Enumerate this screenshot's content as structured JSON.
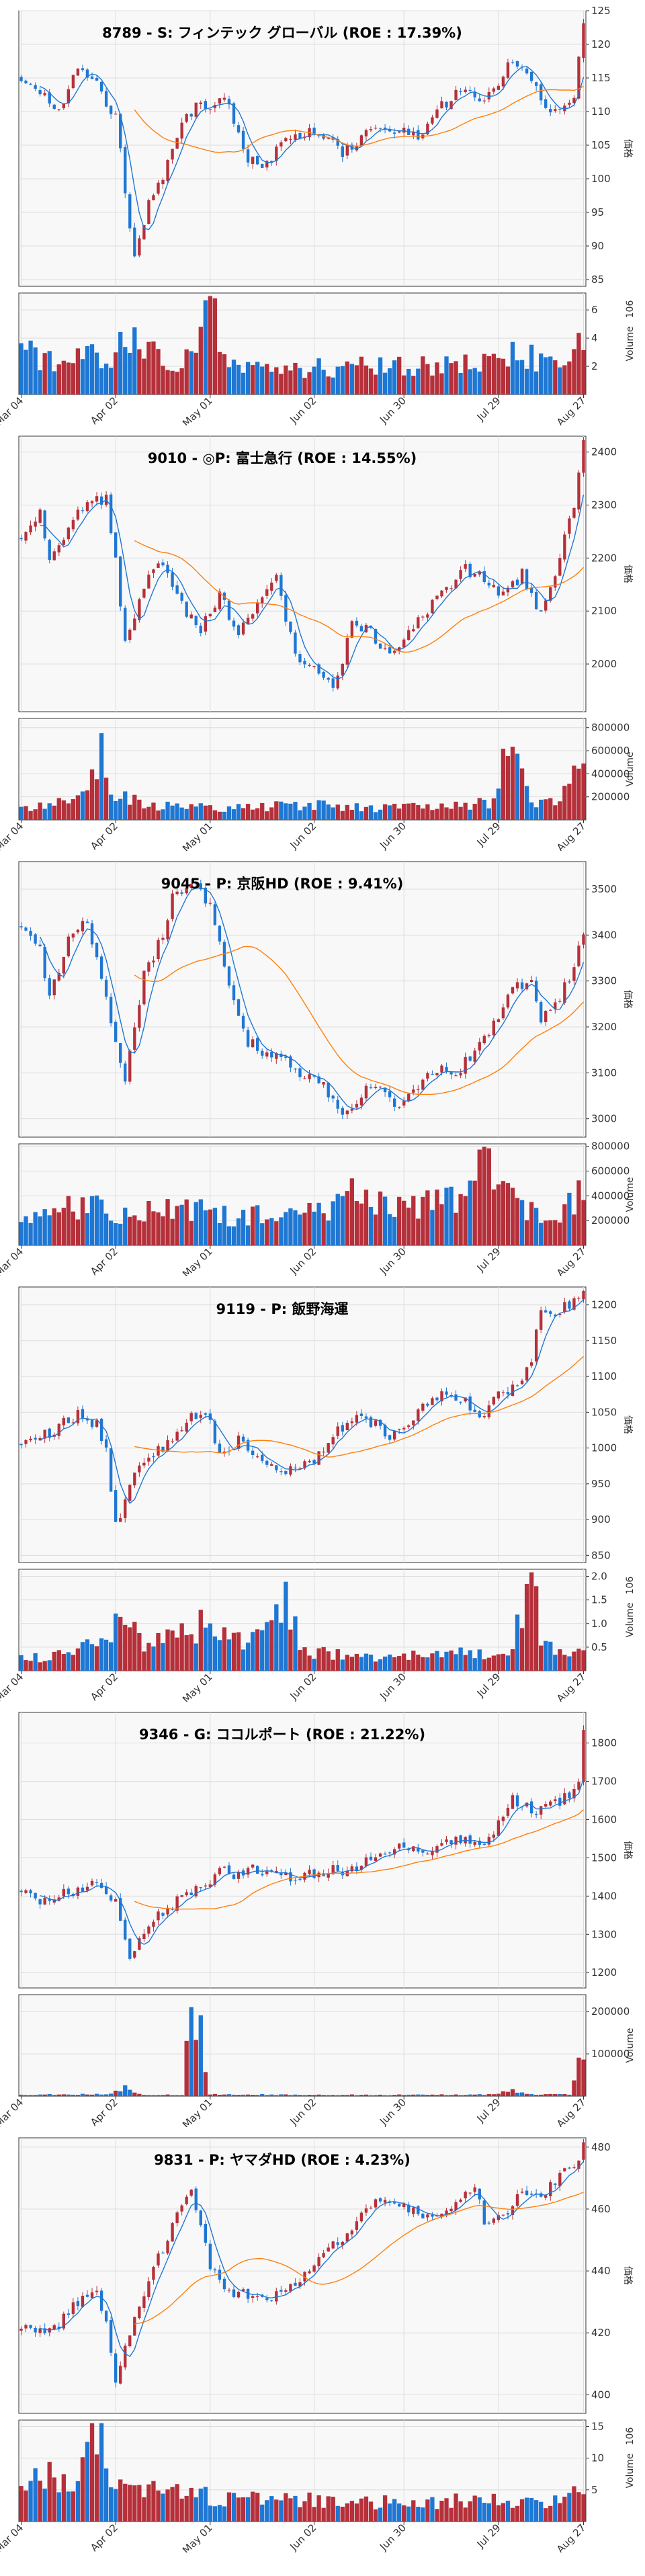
{
  "theme": {
    "up_color": "#b5303a",
    "down_color": "#1f77d4",
    "ma_short_color": "#1f77d4",
    "ma_long_color": "#ff7f0e",
    "plot_bg": "#f8f8f8",
    "grid_color": "#dcdcdc"
  },
  "x_ticks": [
    "Mar 04",
    "Apr 02",
    "May 01",
    "Jun 02",
    "Jun 30",
    "Jul 29",
    "Aug 27"
  ],
  "price_axis_label": "価格",
  "chart_data": [
    {
      "type": "candlestick",
      "title": "8789 - S: フィンテック グローバル (ROE : 17.39%)",
      "ylabel": "価格",
      "volume_label": "Volume",
      "volume_exponent": "6",
      "grid": true,
      "y_ticks": [
        85,
        90,
        95,
        100,
        105,
        110,
        115,
        120,
        125
      ],
      "volume_ticks": [
        "2",
        "4",
        "6"
      ],
      "volume_tick_values": [
        2000000,
        4000000,
        6000000
      ],
      "ylim": [
        84,
        125
      ],
      "vlim": [
        0,
        7200000
      ],
      "keypoints": [
        [
          0,
          115
        ],
        [
          4,
          113
        ],
        [
          8,
          110
        ],
        [
          12,
          117
        ],
        [
          16,
          114
        ],
        [
          20,
          109
        ],
        [
          24,
          88
        ],
        [
          27,
          96
        ],
        [
          30,
          100
        ],
        [
          34,
          108
        ],
        [
          38,
          112
        ],
        [
          40,
          110
        ],
        [
          43,
          112
        ],
        [
          46,
          107
        ],
        [
          48,
          103
        ],
        [
          52,
          102
        ],
        [
          56,
          106
        ],
        [
          60,
          107
        ],
        [
          64,
          106
        ],
        [
          68,
          104
        ],
        [
          72,
          106
        ],
        [
          76,
          108
        ],
        [
          80,
          107
        ],
        [
          84,
          106
        ],
        [
          88,
          110
        ],
        [
          92,
          113
        ],
        [
          96,
          112
        ],
        [
          100,
          113
        ],
        [
          104,
          118
        ],
        [
          108,
          114
        ],
        [
          112,
          110
        ],
        [
          115,
          110
        ],
        [
          117,
          112
        ],
        [
          119,
          124
        ]
      ],
      "volume_profile": [
        [
          0,
          3200000
        ],
        [
          10,
          2300000
        ],
        [
          20,
          3000000
        ],
        [
          24,
          4800000
        ],
        [
          28,
          3000000
        ],
        [
          34,
          2400000
        ],
        [
          38,
          3600000
        ],
        [
          40,
          6800000
        ],
        [
          44,
          2000000
        ],
        [
          55,
          1900000
        ],
        [
          70,
          2000000
        ],
        [
          85,
          2100000
        ],
        [
          95,
          2300000
        ],
        [
          100,
          2800000
        ],
        [
          106,
          3200000
        ],
        [
          110,
          2300000
        ],
        [
          115,
          2500000
        ],
        [
          119,
          3600000
        ]
      ]
    },
    {
      "type": "candlestick",
      "title": "9010 - ◎P: 富士急行 (ROE : 14.55%)",
      "ylabel": "価格",
      "volume_label": "Volume",
      "volume_exponent": "",
      "grid": true,
      "y_ticks": [
        2000,
        2100,
        2200,
        2300,
        2400
      ],
      "volume_ticks": [
        "200000",
        "400000",
        "600000",
        "800000"
      ],
      "volume_tick_values": [
        200000,
        400000,
        600000,
        800000
      ],
      "ylim": [
        1910,
        2430
      ],
      "vlim": [
        0,
        880000
      ],
      "keypoints": [
        [
          0,
          2240
        ],
        [
          4,
          2280
        ],
        [
          6,
          2195
        ],
        [
          10,
          2260
        ],
        [
          14,
          2310
        ],
        [
          18,
          2310
        ],
        [
          20,
          2200
        ],
        [
          22,
          2040
        ],
        [
          26,
          2150
        ],
        [
          30,
          2190
        ],
        [
          34,
          2110
        ],
        [
          38,
          2070
        ],
        [
          42,
          2130
        ],
        [
          46,
          2060
        ],
        [
          50,
          2110
        ],
        [
          54,
          2160
        ],
        [
          58,
          2020
        ],
        [
          62,
          1990
        ],
        [
          66,
          1950
        ],
        [
          68,
          2010
        ],
        [
          70,
          2080
        ],
        [
          74,
          2060
        ],
        [
          78,
          2020
        ],
        [
          82,
          2060
        ],
        [
          86,
          2100
        ],
        [
          90,
          2140
        ],
        [
          94,
          2180
        ],
        [
          98,
          2160
        ],
        [
          102,
          2130
        ],
        [
          106,
          2170
        ],
        [
          110,
          2090
        ],
        [
          114,
          2200
        ],
        [
          117,
          2300
        ],
        [
          119,
          2420
        ]
      ],
      "volume_profile": [
        [
          0,
          120000
        ],
        [
          8,
          150000
        ],
        [
          14,
          250000
        ],
        [
          17,
          600000
        ],
        [
          20,
          200000
        ],
        [
          30,
          120000
        ],
        [
          45,
          100000
        ],
        [
          60,
          140000
        ],
        [
          75,
          100000
        ],
        [
          90,
          120000
        ],
        [
          100,
          150000
        ],
        [
          104,
          780000
        ],
        [
          108,
          120000
        ],
        [
          114,
          150000
        ],
        [
          117,
          380000
        ],
        [
          119,
          560000
        ]
      ]
    },
    {
      "type": "candlestick",
      "title": "9045 - P: 京阪HD (ROE : 9.41%)",
      "ylabel": "価格",
      "volume_label": "Volume",
      "volume_exponent": "",
      "grid": true,
      "y_ticks": [
        3000,
        3100,
        3200,
        3300,
        3400,
        3500
      ],
      "volume_ticks": [
        "200000",
        "400000",
        "600000",
        "800000"
      ],
      "volume_tick_values": [
        200000,
        400000,
        600000,
        800000
      ],
      "ylim": [
        2960,
        3560
      ],
      "vlim": [
        0,
        820000
      ],
      "keypoints": [
        [
          0,
          3420
        ],
        [
          4,
          3370
        ],
        [
          6,
          3260
        ],
        [
          10,
          3400
        ],
        [
          14,
          3430
        ],
        [
          18,
          3260
        ],
        [
          22,
          3090
        ],
        [
          26,
          3310
        ],
        [
          30,
          3400
        ],
        [
          32,
          3480
        ],
        [
          36,
          3520
        ],
        [
          40,
          3460
        ],
        [
          44,
          3300
        ],
        [
          48,
          3170
        ],
        [
          52,
          3140
        ],
        [
          56,
          3130
        ],
        [
          60,
          3090
        ],
        [
          64,
          3070
        ],
        [
          68,
          3020
        ],
        [
          70,
          3010
        ],
        [
          74,
          3080
        ],
        [
          78,
          3040
        ],
        [
          80,
          3020
        ],
        [
          84,
          3070
        ],
        [
          88,
          3110
        ],
        [
          92,
          3100
        ],
        [
          96,
          3150
        ],
        [
          100,
          3210
        ],
        [
          104,
          3290
        ],
        [
          108,
          3300
        ],
        [
          110,
          3210
        ],
        [
          114,
          3260
        ],
        [
          116,
          3310
        ],
        [
          119,
          3410
        ]
      ],
      "volume_profile": [
        [
          0,
          250000
        ],
        [
          10,
          300000
        ],
        [
          15,
          380000
        ],
        [
          20,
          280000
        ],
        [
          35,
          300000
        ],
        [
          45,
          250000
        ],
        [
          55,
          230000
        ],
        [
          65,
          280000
        ],
        [
          70,
          450000
        ],
        [
          80,
          300000
        ],
        [
          90,
          350000
        ],
        [
          96,
          420000
        ],
        [
          98,
          780000
        ],
        [
          102,
          500000
        ],
        [
          106,
          300000
        ],
        [
          112,
          250000
        ],
        [
          119,
          420000
        ]
      ]
    },
    {
      "type": "candlestick",
      "title": "9119 - P: 飯野海運",
      "ylabel": "価格",
      "volume_label": "Volume",
      "volume_exponent": "6",
      "grid": true,
      "y_ticks": [
        850,
        900,
        950,
        1000,
        1050,
        1100,
        1150,
        1200
      ],
      "volume_ticks": [
        "0.5",
        "1.0",
        "1.5",
        "2.0"
      ],
      "volume_tick_values": [
        500000,
        1000000,
        1500000,
        2000000
      ],
      "ylim": [
        840,
        1225
      ],
      "vlim": [
        0,
        2150000
      ],
      "keypoints": [
        [
          0,
          1005
        ],
        [
          4,
          1015
        ],
        [
          8,
          1030
        ],
        [
          12,
          1045
        ],
        [
          16,
          1035
        ],
        [
          18,
          1000
        ],
        [
          20,
          890
        ],
        [
          24,
          960
        ],
        [
          28,
          990
        ],
        [
          32,
          1010
        ],
        [
          36,
          1045
        ],
        [
          40,
          1040
        ],
        [
          42,
          990
        ],
        [
          46,
          1010
        ],
        [
          50,
          985
        ],
        [
          54,
          965
        ],
        [
          58,
          975
        ],
        [
          62,
          985
        ],
        [
          66,
          1020
        ],
        [
          70,
          1040
        ],
        [
          74,
          1035
        ],
        [
          78,
          1020
        ],
        [
          82,
          1040
        ],
        [
          86,
          1060
        ],
        [
          90,
          1080
        ],
        [
          94,
          1065
        ],
        [
          98,
          1040
        ],
        [
          100,
          1070
        ],
        [
          104,
          1080
        ],
        [
          108,
          1120
        ],
        [
          110,
          1200
        ],
        [
          112,
          1185
        ],
        [
          116,
          1200
        ],
        [
          119,
          1215
        ]
      ],
      "volume_profile": [
        [
          0,
          250000
        ],
        [
          10,
          350000
        ],
        [
          18,
          800000
        ],
        [
          22,
          1200000
        ],
        [
          26,
          600000
        ],
        [
          34,
          800000
        ],
        [
          40,
          1100000
        ],
        [
          46,
          700000
        ],
        [
          52,
          900000
        ],
        [
          56,
          1600000
        ],
        [
          60,
          400000
        ],
        [
          75,
          300000
        ],
        [
          90,
          400000
        ],
        [
          100,
          350000
        ],
        [
          104,
          600000
        ],
        [
          108,
          2000000
        ],
        [
          110,
          700000
        ],
        [
          115,
          450000
        ],
        [
          119,
          500000
        ]
      ]
    },
    {
      "type": "candlestick",
      "title": "9346 - G: ココルポート (ROE : 21.22%)",
      "ylabel": "価格",
      "volume_label": "Volume",
      "volume_exponent": "",
      "grid": true,
      "y_ticks": [
        1200,
        1300,
        1400,
        1500,
        1600,
        1700,
        1800
      ],
      "volume_ticks": [
        "100000",
        "200000"
      ],
      "volume_tick_values": [
        100000,
        200000
      ],
      "ylim": [
        1160,
        1880
      ],
      "vlim": [
        0,
        240000
      ],
      "keypoints": [
        [
          0,
          1410
        ],
        [
          4,
          1390
        ],
        [
          8,
          1400
        ],
        [
          12,
          1420
        ],
        [
          16,
          1430
        ],
        [
          20,
          1390
        ],
        [
          23,
          1250
        ],
        [
          26,
          1300
        ],
        [
          30,
          1360
        ],
        [
          34,
          1400
        ],
        [
          38,
          1420
        ],
        [
          42,
          1470
        ],
        [
          46,
          1455
        ],
        [
          50,
          1470
        ],
        [
          54,
          1460
        ],
        [
          58,
          1450
        ],
        [
          62,
          1455
        ],
        [
          66,
          1465
        ],
        [
          70,
          1470
        ],
        [
          74,
          1500
        ],
        [
          78,
          1520
        ],
        [
          82,
          1530
        ],
        [
          86,
          1525
        ],
        [
          90,
          1535
        ],
        [
          94,
          1545
        ],
        [
          98,
          1550
        ],
        [
          100,
          1560
        ],
        [
          102,
          1620
        ],
        [
          104,
          1660
        ],
        [
          108,
          1620
        ],
        [
          112,
          1640
        ],
        [
          116,
          1660
        ],
        [
          118,
          1700
        ],
        [
          119,
          1840
        ]
      ],
      "volume_profile": [
        [
          0,
          3000
        ],
        [
          18,
          5000
        ],
        [
          22,
          20000
        ],
        [
          26,
          4000
        ],
        [
          34,
          3000
        ],
        [
          36,
          200000
        ],
        [
          38,
          150000
        ],
        [
          40,
          5000
        ],
        [
          60,
          3000
        ],
        [
          80,
          3000
        ],
        [
          100,
          4000
        ],
        [
          104,
          15000
        ],
        [
          108,
          4000
        ],
        [
          116,
          4000
        ],
        [
          119,
          100000
        ]
      ]
    },
    {
      "type": "candlestick",
      "title": "9831 - P: ヤマダHD (ROE : 4.23%)",
      "ylabel": "価格",
      "volume_label": "Volume",
      "volume_exponent": "6",
      "grid": true,
      "y_ticks": [
        400,
        420,
        440,
        460,
        480
      ],
      "volume_ticks": [
        "5",
        "10",
        "15"
      ],
      "volume_tick_values": [
        5000000,
        10000000,
        15000000
      ],
      "ylim": [
        394,
        483
      ],
      "vlim": [
        0,
        16000000
      ],
      "keypoints": [
        [
          0,
          421
        ],
        [
          4,
          420
        ],
        [
          8,
          423
        ],
        [
          12,
          430
        ],
        [
          16,
          433
        ],
        [
          18,
          425
        ],
        [
          20,
          405
        ],
        [
          24,
          425
        ],
        [
          28,
          440
        ],
        [
          32,
          455
        ],
        [
          36,
          465
        ],
        [
          38,
          455
        ],
        [
          40,
          440
        ],
        [
          44,
          434
        ],
        [
          48,
          432
        ],
        [
          52,
          431
        ],
        [
          56,
          435
        ],
        [
          60,
          438
        ],
        [
          64,
          446
        ],
        [
          68,
          451
        ],
        [
          72,
          458
        ],
        [
          76,
          463
        ],
        [
          80,
          461
        ],
        [
          84,
          458
        ],
        [
          88,
          457
        ],
        [
          92,
          461
        ],
        [
          96,
          468
        ],
        [
          98,
          456
        ],
        [
          102,
          458
        ],
        [
          106,
          466
        ],
        [
          110,
          465
        ],
        [
          114,
          470
        ],
        [
          118,
          476
        ],
        [
          119,
          480
        ]
      ],
      "volume_profile": [
        [
          0,
          6000000
        ],
        [
          6,
          8000000
        ],
        [
          12,
          6000000
        ],
        [
          16,
          13500000
        ],
        [
          20,
          6000000
        ],
        [
          26,
          5500000
        ],
        [
          32,
          4500000
        ],
        [
          40,
          4000000
        ],
        [
          60,
          3500000
        ],
        [
          80,
          3000000
        ],
        [
          95,
          3500000
        ],
        [
          105,
          3000000
        ],
        [
          112,
          3500000
        ],
        [
          119,
          5000000
        ]
      ]
    }
  ]
}
